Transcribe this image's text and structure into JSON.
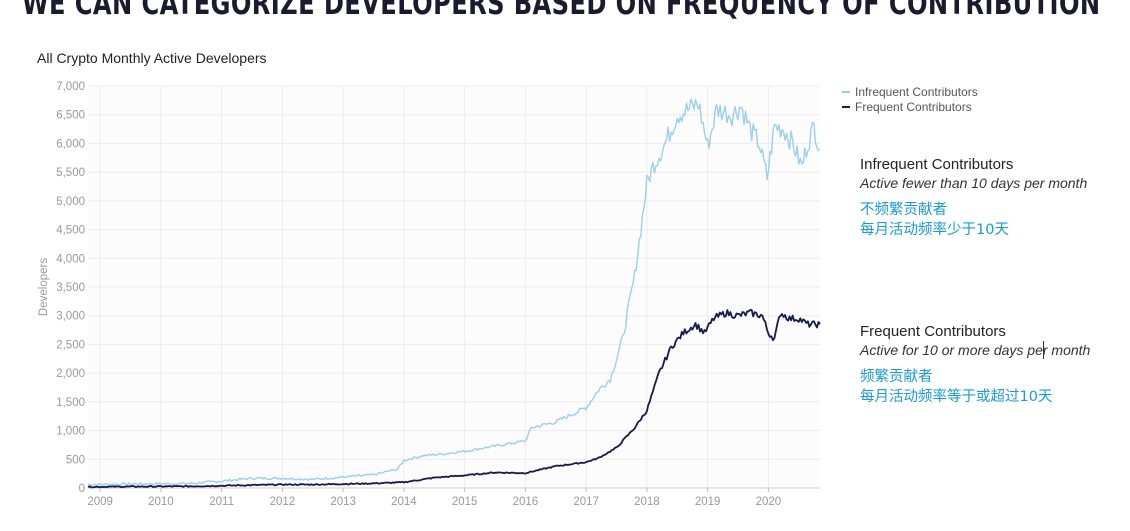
{
  "page_title": "WE CAN CATEGORIZE DEVELOPERS BASED ON FREQUENCY OF CONTRIBUTION",
  "chart_data": {
    "type": "line",
    "title": "All Crypto Monthly Active Developers",
    "xlabel": "",
    "ylabel": "Developers",
    "xlim": [
      2008.8,
      2020.85
    ],
    "ylim": [
      0,
      7000
    ],
    "yticks": [
      "0",
      "500",
      "1,000",
      "1,500",
      "2,000",
      "2,500",
      "3,000",
      "3,500",
      "4,000",
      "4,500",
      "5,000",
      "5,500",
      "6,000",
      "6,500",
      "7,000"
    ],
    "xticks": [
      "2009",
      "2010",
      "2011",
      "2012",
      "2013",
      "2014",
      "2015",
      "2016",
      "2017",
      "2018",
      "2019",
      "2020"
    ],
    "grid": true,
    "legend_position": "right",
    "series": [
      {
        "name": "Infrequent Contributors",
        "color": "#9dcfec",
        "points": [
          [
            2008.8,
            60
          ],
          [
            2009.5,
            70
          ],
          [
            2010.5,
            80
          ],
          [
            2011.0,
            120
          ],
          [
            2011.5,
            170
          ],
          [
            2012.0,
            170
          ],
          [
            2012.5,
            150
          ],
          [
            2013.0,
            190
          ],
          [
            2013.5,
            230
          ],
          [
            2013.9,
            330
          ],
          [
            2014.0,
            480
          ],
          [
            2014.3,
            560
          ],
          [
            2014.7,
            600
          ],
          [
            2015.0,
            640
          ],
          [
            2015.5,
            730
          ],
          [
            2016.0,
            820
          ],
          [
            2016.1,
            1050
          ],
          [
            2016.5,
            1150
          ],
          [
            2017.0,
            1400
          ],
          [
            2017.2,
            1700
          ],
          [
            2017.4,
            1900
          ],
          [
            2017.6,
            2600
          ],
          [
            2017.8,
            3700
          ],
          [
            2018.0,
            5300
          ],
          [
            2018.1,
            5600
          ],
          [
            2018.3,
            6000
          ],
          [
            2018.5,
            6500
          ],
          [
            2018.7,
            6600
          ],
          [
            2018.85,
            6700
          ],
          [
            2019.0,
            5950
          ],
          [
            2019.15,
            6600
          ],
          [
            2019.4,
            6500
          ],
          [
            2019.55,
            6650
          ],
          [
            2019.7,
            6250
          ],
          [
            2019.85,
            6000
          ],
          [
            2019.98,
            5400
          ],
          [
            2020.1,
            6300
          ],
          [
            2020.25,
            6250
          ],
          [
            2020.4,
            6000
          ],
          [
            2020.55,
            5600
          ],
          [
            2020.65,
            6000
          ],
          [
            2020.75,
            6300
          ],
          [
            2020.85,
            5900
          ]
        ]
      },
      {
        "name": "Frequent Contributors",
        "color": "#161a4f",
        "points": [
          [
            2008.8,
            20
          ],
          [
            2009.5,
            25
          ],
          [
            2010.5,
            30
          ],
          [
            2011.0,
            40
          ],
          [
            2011.5,
            50
          ],
          [
            2012.0,
            60
          ],
          [
            2012.5,
            60
          ],
          [
            2013.0,
            70
          ],
          [
            2013.5,
            80
          ],
          [
            2014.0,
            100
          ],
          [
            2014.5,
            180
          ],
          [
            2015.0,
            220
          ],
          [
            2015.5,
            270
          ],
          [
            2016.0,
            260
          ],
          [
            2016.5,
            380
          ],
          [
            2017.0,
            450
          ],
          [
            2017.2,
            520
          ],
          [
            2017.5,
            700
          ],
          [
            2017.8,
            1050
          ],
          [
            2018.0,
            1350
          ],
          [
            2018.2,
            2000
          ],
          [
            2018.4,
            2450
          ],
          [
            2018.6,
            2700
          ],
          [
            2018.8,
            2850
          ],
          [
            2018.95,
            2700
          ],
          [
            2019.1,
            2950
          ],
          [
            2019.3,
            3050
          ],
          [
            2019.5,
            3000
          ],
          [
            2019.7,
            3050
          ],
          [
            2019.9,
            3000
          ],
          [
            2020.0,
            2700
          ],
          [
            2020.1,
            2600
          ],
          [
            2020.2,
            3050
          ],
          [
            2020.35,
            2950
          ],
          [
            2020.5,
            2950
          ],
          [
            2020.65,
            2850
          ],
          [
            2020.85,
            2850
          ]
        ]
      }
    ]
  },
  "annotations": [
    {
      "heading": "Infrequent Contributors",
      "subtitle": "Active fewer than 10 days per month",
      "cn_line1": "不频繁贡献者",
      "cn_line2": "每月活动频率少于10天"
    },
    {
      "heading": "Frequent Contributors",
      "subtitle": "Active for 10 or more days per month",
      "cn_line1": "频繁贡献者",
      "cn_line2": "每月活动频率等于或超过10天"
    }
  ]
}
